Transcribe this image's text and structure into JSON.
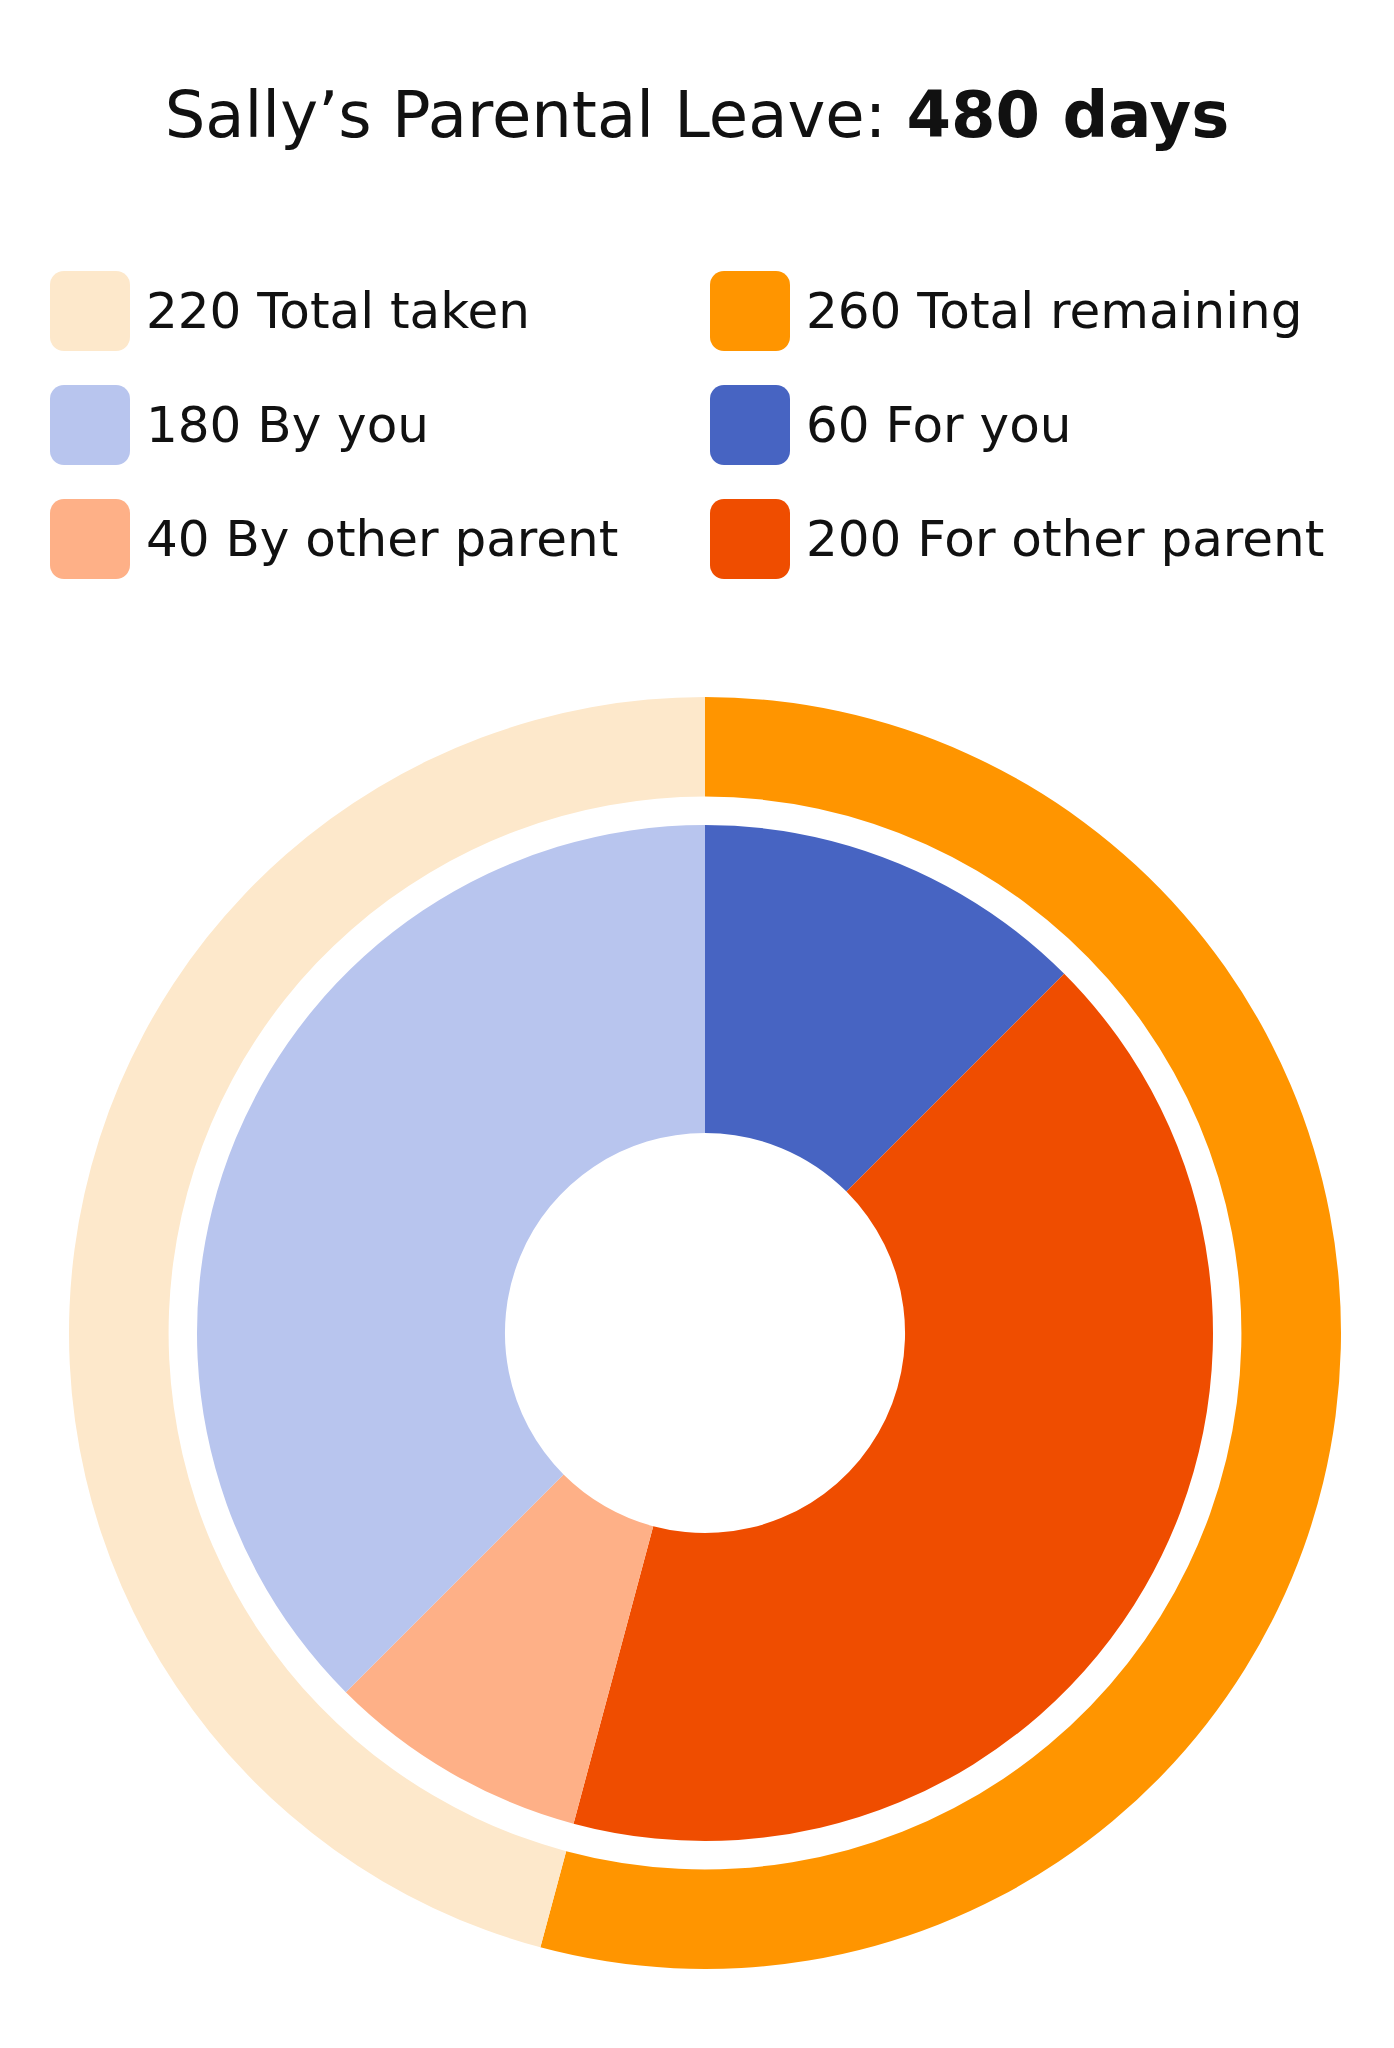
{
  "chart_data": [
    {
      "type": "donut",
      "title": "Sally’s Parental Leave: 480 days",
      "legend": "top",
      "categories": [
        "220 Total taken",
        "260 Total remaining"
      ],
      "values": [
        220,
        260
      ],
      "colors": [
        "#fde8cb",
        "#ff9500"
      ]
    },
    {
      "type": "donut",
      "legend": "top",
      "categories": [
        "180 By you",
        "40 By other parent",
        "200 For other parent",
        "60 For you"
      ],
      "values": [
        180,
        40,
        200,
        60
      ],
      "colors": [
        "#b8c5ee",
        "#feb087",
        "#ef4d00",
        "#4764c2"
      ]
    }
  ]
}
